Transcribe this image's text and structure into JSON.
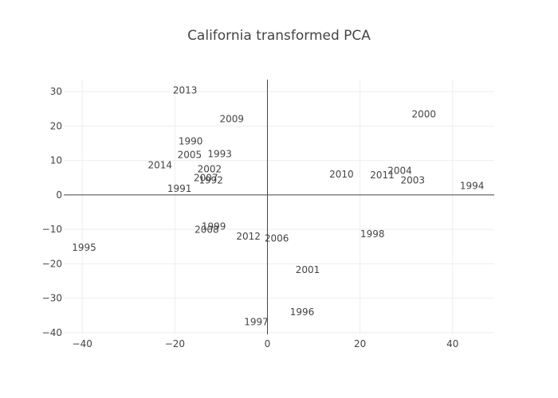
{
  "chart_data": {
    "type": "scatter",
    "mode": "text",
    "title": "California transformed PCA",
    "xlabel": "",
    "ylabel": "",
    "xlim": [
      -44,
      49
    ],
    "ylim": [
      -40.5,
      33.5
    ],
    "x_ticks": [
      -40,
      -20,
      0,
      20,
      40
    ],
    "y_ticks": [
      -40,
      -30,
      -20,
      -10,
      0,
      10,
      20,
      30
    ],
    "grid": true,
    "zero_lines": true,
    "points": [
      {
        "label": "1990",
        "x": -16.6,
        "y": 15.6
      },
      {
        "label": "1991",
        "x": -19.0,
        "y": 1.8
      },
      {
        "label": "1992",
        "x": -12.2,
        "y": 4.2
      },
      {
        "label": "1993",
        "x": -10.3,
        "y": 11.9
      },
      {
        "label": "1994",
        "x": 44.2,
        "y": 2.6
      },
      {
        "label": "1995",
        "x": -39.6,
        "y": -15.3
      },
      {
        "label": "1996",
        "x": 7.5,
        "y": -34.0
      },
      {
        "label": "1997",
        "x": -2.4,
        "y": -36.9
      },
      {
        "label": "1998",
        "x": 22.7,
        "y": -11.4
      },
      {
        "label": "1999",
        "x": -11.6,
        "y": -9.2
      },
      {
        "label": "2000",
        "x": 33.8,
        "y": 23.4
      },
      {
        "label": "2001",
        "x": 8.7,
        "y": -21.8
      },
      {
        "label": "2002",
        "x": -12.5,
        "y": 7.5
      },
      {
        "label": "2003",
        "x": 31.4,
        "y": 4.2
      },
      {
        "label": "2004",
        "x": 28.6,
        "y": 7.0
      },
      {
        "label": "2005",
        "x": -16.8,
        "y": 11.6
      },
      {
        "label": "2006",
        "x": 2.0,
        "y": -12.6
      },
      {
        "label": "2007",
        "x": -13.3,
        "y": 4.9
      },
      {
        "label": "2008",
        "x": -13.1,
        "y": -10.1
      },
      {
        "label": "2009",
        "x": -7.7,
        "y": 22.0
      },
      {
        "label": "2010",
        "x": 16.0,
        "y": 6.0
      },
      {
        "label": "2011",
        "x": 24.8,
        "y": 5.8
      },
      {
        "label": "2012",
        "x": -4.1,
        "y": -12.0
      },
      {
        "label": "2013",
        "x": -17.8,
        "y": 30.4
      },
      {
        "label": "2014",
        "x": -23.2,
        "y": 8.6
      }
    ]
  }
}
